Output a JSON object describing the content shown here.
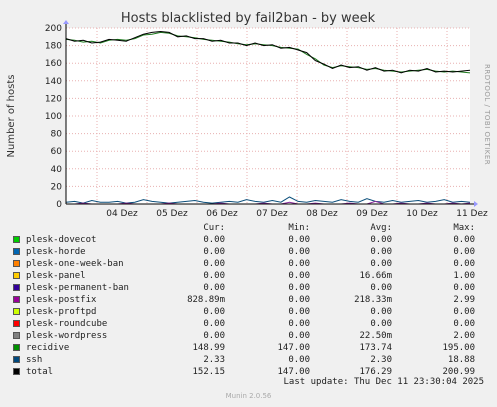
{
  "chart_data": {
    "type": "line",
    "title": "Hosts blacklisted by fail2ban - by week",
    "ylabel": "Number of hosts",
    "ylim": [
      0,
      200
    ],
    "yticks": [
      0,
      20,
      40,
      60,
      80,
      100,
      120,
      140,
      160,
      180,
      200
    ],
    "xticks": [
      "04 Dez",
      "05 Dez",
      "06 Dez",
      "07 Dez",
      "08 Dez",
      "09 Dez",
      "10 Dez",
      "11 Dez"
    ],
    "grid": true,
    "side_label": "RRDTOOL / TOBI OETIKER",
    "series": [
      {
        "name": "recidive",
        "color": "#1e7a1e",
        "values": [
          187,
          186,
          184,
          185,
          183,
          186,
          187,
          186,
          188,
          192,
          193,
          195,
          194,
          191,
          190,
          189,
          187,
          186,
          185,
          184,
          182,
          181,
          182,
          181,
          180,
          178,
          177,
          176,
          170,
          165,
          158,
          155,
          157,
          156,
          155,
          153,
          154,
          152,
          151,
          150,
          151,
          152,
          153,
          151,
          150,
          151,
          150,
          149
        ]
      },
      {
        "name": "total",
        "color": "#000000",
        "values": [
          188,
          185,
          186,
          183,
          184,
          187,
          186,
          185,
          189,
          193,
          195,
          196,
          195,
          190,
          191,
          188,
          188,
          185,
          186,
          183,
          183,
          180,
          183,
          180,
          181,
          177,
          178,
          175,
          172,
          163,
          159,
          154,
          158,
          155,
          156,
          152,
          155,
          151,
          152,
          149,
          152,
          151,
          154,
          150,
          151,
          150,
          151,
          152
        ]
      },
      {
        "name": "ssh",
        "color": "#0b4e7a",
        "values": [
          2,
          3,
          1,
          4,
          2,
          2,
          3,
          1,
          2,
          5,
          3,
          2,
          1,
          2,
          3,
          4,
          2,
          1,
          2,
          3,
          2,
          5,
          3,
          2,
          4,
          2,
          8,
          3,
          2,
          4,
          3,
          2,
          5,
          3,
          2,
          6,
          3,
          2,
          4,
          2,
          3,
          4,
          2,
          3,
          5,
          2,
          3,
          2
        ]
      },
      {
        "name": "plesk-postfix",
        "color": "#8a2a9c",
        "values": [
          0,
          0,
          1,
          0,
          0,
          0,
          0,
          1,
          0,
          0,
          0,
          0,
          1,
          0,
          0,
          0,
          0,
          0,
          1,
          0,
          0,
          0,
          0,
          1,
          0,
          0,
          2,
          0,
          0,
          1,
          0,
          0,
          0,
          1,
          0,
          0,
          3,
          0,
          0,
          1,
          0,
          0,
          1,
          0,
          0,
          1,
          0,
          1
        ]
      }
    ]
  },
  "legend": {
    "headers": {
      "cur": "Cur:",
      "min": "Min:",
      "avg": "Avg:",
      "max": "Max:"
    },
    "rows": [
      {
        "name": "plesk-dovecot",
        "color": "#00cc00",
        "cur": "0.00",
        "min": "0.00",
        "avg": "0.00",
        "max": "0.00"
      },
      {
        "name": "plesk-horde",
        "color": "#0066b3",
        "cur": "0.00",
        "min": "0.00",
        "avg": "0.00",
        "max": "0.00"
      },
      {
        "name": "plesk-one-week-ban",
        "color": "#ff8000",
        "cur": "0.00",
        "min": "0.00",
        "avg": "0.00",
        "max": "0.00"
      },
      {
        "name": "plesk-panel",
        "color": "#ffcc00",
        "cur": "0.00",
        "min": "0.00",
        "avg": "16.66m",
        "max": "1.00"
      },
      {
        "name": "plesk-permanent-ban",
        "color": "#330099",
        "cur": "0.00",
        "min": "0.00",
        "avg": "0.00",
        "max": "0.00"
      },
      {
        "name": "plesk-postfix",
        "color": "#990099",
        "cur": "828.89m",
        "min": "0.00",
        "avg": "218.33m",
        "max": "2.99"
      },
      {
        "name": "plesk-proftpd",
        "color": "#ccff00",
        "cur": "0.00",
        "min": "0.00",
        "avg": "0.00",
        "max": "0.00"
      },
      {
        "name": "plesk-roundcube",
        "color": "#ff0000",
        "cur": "0.00",
        "min": "0.00",
        "avg": "0.00",
        "max": "0.00"
      },
      {
        "name": "plesk-wordpress",
        "color": "#808080",
        "cur": "0.00",
        "min": "0.00",
        "avg": "22.50m",
        "max": "2.00"
      },
      {
        "name": "recidive",
        "color": "#008f00",
        "cur": "148.99",
        "min": "147.00",
        "avg": "173.74",
        "max": "195.00"
      },
      {
        "name": "ssh",
        "color": "#00487d",
        "cur": "2.33",
        "min": "0.00",
        "avg": "2.30",
        "max": "18.88"
      },
      {
        "name": "total",
        "color": "#000000",
        "cur": "152.15",
        "min": "147.00",
        "avg": "176.29",
        "max": "200.99"
      }
    ]
  },
  "last_update": "Last update: Thu Dec 11 23:30:04 2025",
  "version": "Munin 2.0.56"
}
